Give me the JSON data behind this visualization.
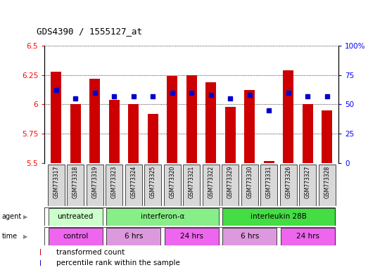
{
  "title": "GDS4390 / 1555127_at",
  "samples": [
    "GSM773317",
    "GSM773318",
    "GSM773319",
    "GSM773323",
    "GSM773324",
    "GSM773325",
    "GSM773320",
    "GSM773321",
    "GSM773322",
    "GSM773329",
    "GSM773330",
    "GSM773331",
    "GSM773326",
    "GSM773327",
    "GSM773328"
  ],
  "transformed_count": [
    6.28,
    6.0,
    6.22,
    6.04,
    6.0,
    5.92,
    6.24,
    6.25,
    6.19,
    5.98,
    6.12,
    5.52,
    6.29,
    6.0,
    5.95
  ],
  "percentile_rank": [
    62,
    55,
    60,
    57,
    57,
    57,
    60,
    60,
    58,
    55,
    58,
    45,
    60,
    57,
    57
  ],
  "ymin": 5.5,
  "ymax": 6.5,
  "yticks": [
    5.5,
    5.75,
    6.0,
    6.25,
    6.5
  ],
  "ytick_labels": [
    "5.5",
    "5.75",
    "6",
    "6.25",
    "6.5"
  ],
  "right_yticks": [
    0,
    25,
    50,
    75,
    100
  ],
  "right_ytick_labels": [
    "0",
    "25",
    "50",
    "75",
    "100%"
  ],
  "bar_color": "#cc0000",
  "dot_color": "#0000cc",
  "agent_groups": [
    {
      "label": "untreated",
      "start": 0,
      "end": 3,
      "color": "#ccffcc"
    },
    {
      "label": "interferon-α",
      "start": 3,
      "end": 9,
      "color": "#88ee88"
    },
    {
      "label": "interleukin 28B",
      "start": 9,
      "end": 15,
      "color": "#44dd44"
    }
  ],
  "time_groups": [
    {
      "label": "control",
      "start": 0,
      "end": 3,
      "color": "#ee66ee"
    },
    {
      "label": "6 hrs",
      "start": 3,
      "end": 6,
      "color": "#dd99dd"
    },
    {
      "label": "24 hrs",
      "start": 6,
      "end": 9,
      "color": "#ee66ee"
    },
    {
      "label": "6 hrs",
      "start": 9,
      "end": 12,
      "color": "#dd99dd"
    },
    {
      "label": "24 hrs",
      "start": 12,
      "end": 15,
      "color": "#ee66ee"
    }
  ],
  "legend_items": [
    {
      "color": "#cc0000",
      "label": "transformed count"
    },
    {
      "color": "#0000cc",
      "label": "percentile rank within the sample"
    }
  ],
  "bg_color": "#ffffff"
}
